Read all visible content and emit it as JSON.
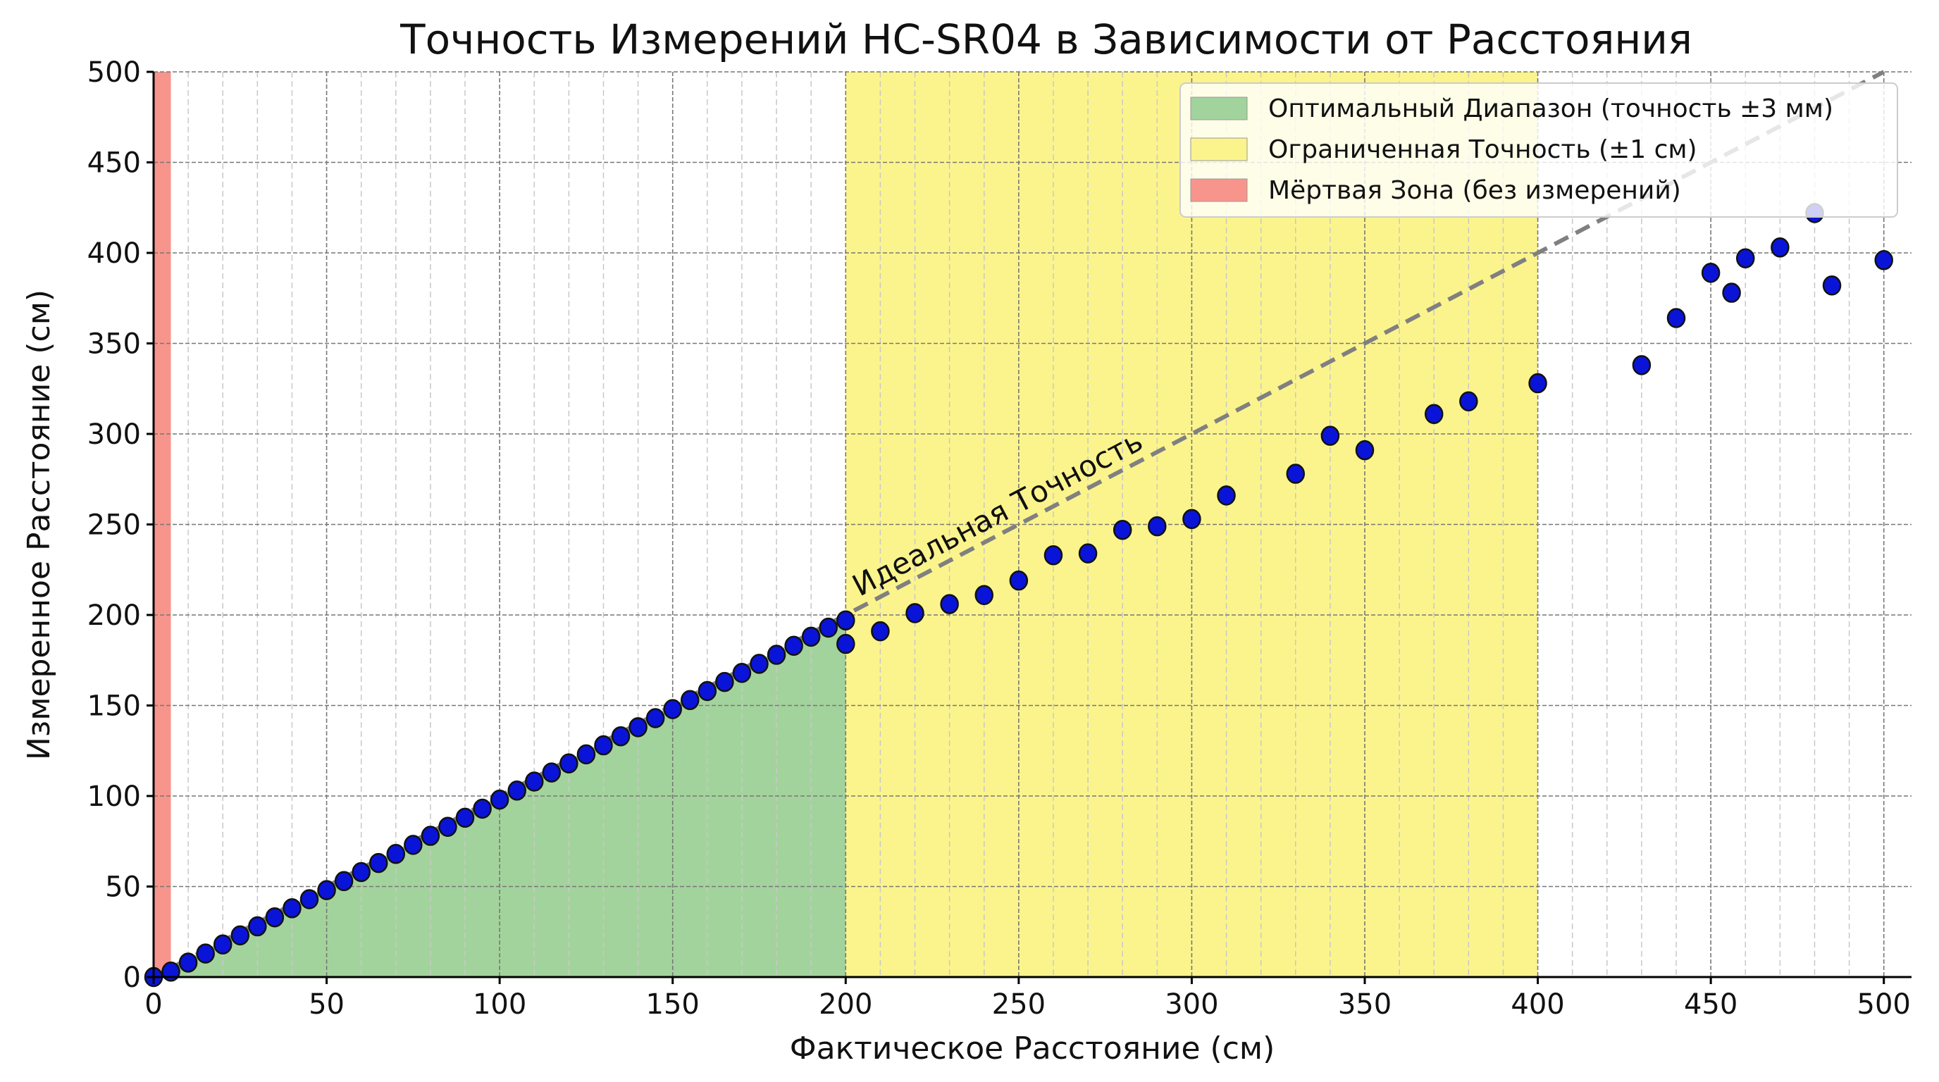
{
  "chart_data": {
    "type": "scatter",
    "title": "Точность Измерений HC-SR04 в Зависимости от Расстояния",
    "xlabel": "Фактическое Расстояние (см)",
    "ylabel": "Измеренное Расстояние (см)",
    "xlim": [
      0,
      508
    ],
    "ylim": [
      0,
      500
    ],
    "xticks": [
      0,
      50,
      100,
      150,
      200,
      250,
      300,
      350,
      400,
      450,
      500
    ],
    "yticks": [
      0,
      50,
      100,
      150,
      200,
      250,
      300,
      350,
      400,
      450,
      500
    ],
    "grid": true,
    "legend_position": "top-right",
    "regions": [
      {
        "name": "Оптимальный Диапазон (точность ±3 мм)",
        "x_from": 0,
        "x_to": 200,
        "shape": "under-ideal-line",
        "color": "#a3d39c"
      },
      {
        "name": "Ограниченная Точность (±1 см)",
        "x_from": 200,
        "x_to": 400,
        "shape": "full-height",
        "color": "#fbf48d"
      },
      {
        "name": "Мёртвая Зона (без измерений)",
        "x_from": 0,
        "x_to": 5,
        "shape": "full-height",
        "color": "#f7958c"
      }
    ],
    "ideal_line": {
      "label": "Идеальная Точность",
      "from": [
        0,
        0
      ],
      "to": [
        500,
        500
      ],
      "color": "#808080"
    },
    "points": {
      "color": "#0a14d8",
      "x": [
        0,
        5,
        10,
        15,
        20,
        25,
        30,
        35,
        40,
        45,
        50,
        55,
        60,
        65,
        70,
        75,
        80,
        85,
        90,
        95,
        100,
        105,
        110,
        115,
        120,
        125,
        130,
        135,
        140,
        145,
        150,
        155,
        160,
        165,
        170,
        175,
        180,
        185,
        190,
        195,
        200,
        200,
        210,
        220,
        230,
        240,
        250,
        260,
        270,
        280,
        290,
        300,
        310,
        330,
        340,
        350,
        370,
        380,
        400,
        430,
        440,
        450,
        456,
        460,
        470,
        480,
        485,
        500
      ],
      "y": [
        0,
        3,
        8,
        13,
        18,
        23,
        28,
        33,
        38,
        43,
        48,
        53,
        58,
        63,
        68,
        73,
        78,
        83,
        88,
        93,
        98,
        103,
        108,
        113,
        118,
        123,
        128,
        133,
        138,
        143,
        148,
        153,
        158,
        163,
        168,
        173,
        178,
        183,
        188,
        193,
        197,
        184,
        191,
        201,
        206,
        211,
        219,
        233,
        234,
        247,
        249,
        253,
        266,
        278,
        299,
        291,
        311,
        318,
        328,
        338,
        364,
        389,
        378,
        397,
        403,
        422,
        382,
        396
      ]
    }
  }
}
